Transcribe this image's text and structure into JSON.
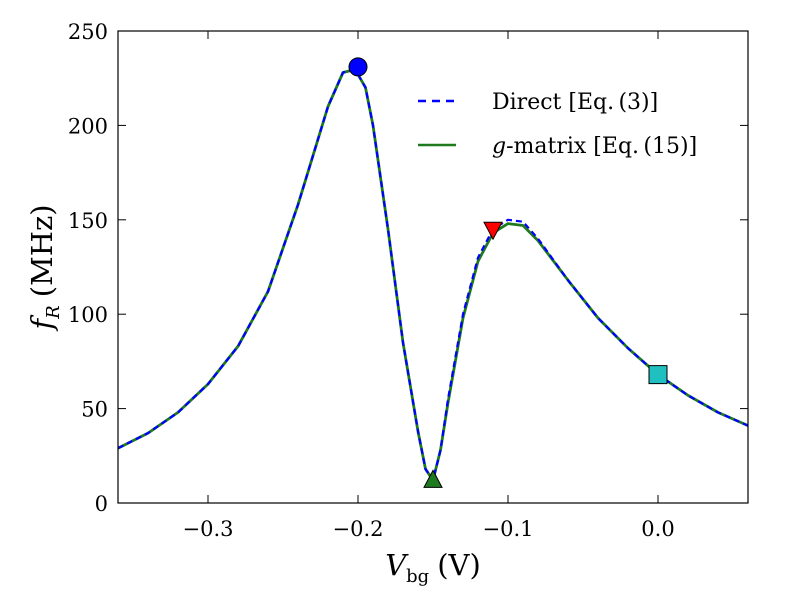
{
  "chart_data": {
    "type": "line",
    "title": "",
    "xlabel": "V_bg (V)",
    "xlabel_parts": {
      "main": "V",
      "sub": "bg",
      "unit": "(V)"
    },
    "ylabel": "f_R (MHz)",
    "ylabel_parts": {
      "main": "f",
      "sub": "R",
      "unit": "(MHz)"
    },
    "xlim": [
      -0.36,
      0.06
    ],
    "ylim": [
      0,
      250
    ],
    "xticks": [
      -0.3,
      -0.2,
      -0.1,
      0.0
    ],
    "xtick_labels": [
      "−0.3",
      "−0.2",
      "−0.1",
      "0.0"
    ],
    "yticks": [
      0,
      50,
      100,
      150,
      200,
      250
    ],
    "ytick_labels": [
      "0",
      "50",
      "100",
      "150",
      "200",
      "250"
    ],
    "grid": false,
    "legend_position": "top-right",
    "series": [
      {
        "name": "Direct [Eq. (3)]",
        "legend_label": "Direct [Eq. (3)]",
        "color": "#0000ff",
        "style": "dashed",
        "x": [
          -0.36,
          -0.34,
          -0.32,
          -0.3,
          -0.28,
          -0.26,
          -0.24,
          -0.22,
          -0.21,
          -0.205,
          -0.2,
          -0.195,
          -0.19,
          -0.18,
          -0.17,
          -0.16,
          -0.155,
          -0.15,
          -0.145,
          -0.14,
          -0.13,
          -0.12,
          -0.11,
          -0.1,
          -0.09,
          -0.08,
          -0.06,
          -0.04,
          -0.02,
          0.0,
          0.02,
          0.04,
          0.06
        ],
        "y": [
          29,
          37,
          48,
          63,
          83,
          112,
          158,
          210,
          228,
          229,
          227,
          220,
          200,
          145,
          85,
          38,
          18,
          12,
          28,
          55,
          100,
          130,
          145,
          150,
          149,
          140,
          118,
          98,
          82,
          68,
          57,
          48,
          41
        ]
      },
      {
        "name": "g-matrix [Eq. (15)]",
        "legend_label_italic": "g",
        "legend_label_rest": "-matrix [Eq. (15)]",
        "color": "#1f7a1f",
        "style": "solid",
        "x": [
          -0.36,
          -0.34,
          -0.32,
          -0.3,
          -0.28,
          -0.26,
          -0.24,
          -0.22,
          -0.21,
          -0.205,
          -0.2,
          -0.195,
          -0.19,
          -0.18,
          -0.17,
          -0.16,
          -0.155,
          -0.15,
          -0.145,
          -0.14,
          -0.13,
          -0.12,
          -0.11,
          -0.1,
          -0.09,
          -0.08,
          -0.06,
          -0.04,
          -0.02,
          0.0,
          0.02,
          0.04,
          0.06
        ],
        "y": [
          29,
          37,
          48,
          63,
          83,
          112,
          158,
          210,
          228,
          229,
          227,
          220,
          200,
          145,
          85,
          38,
          18,
          12,
          28,
          53,
          98,
          128,
          143,
          148,
          147,
          139,
          118,
          98,
          82,
          68,
          57,
          48,
          41
        ]
      }
    ],
    "markers": [
      {
        "name": "marker-circle",
        "shape": "circle",
        "x": -0.2,
        "y": 231,
        "color": "#0000ff"
      },
      {
        "name": "marker-triangle-up",
        "shape": "triangle-up",
        "x": -0.15,
        "y": 12,
        "color": "#1f7a1f"
      },
      {
        "name": "marker-triangle-down",
        "shape": "triangle-down",
        "x": -0.11,
        "y": 145,
        "color": "#ff0000"
      },
      {
        "name": "marker-square",
        "shape": "square",
        "x": 0.0,
        "y": 68,
        "color": "#20c0c0"
      }
    ]
  }
}
